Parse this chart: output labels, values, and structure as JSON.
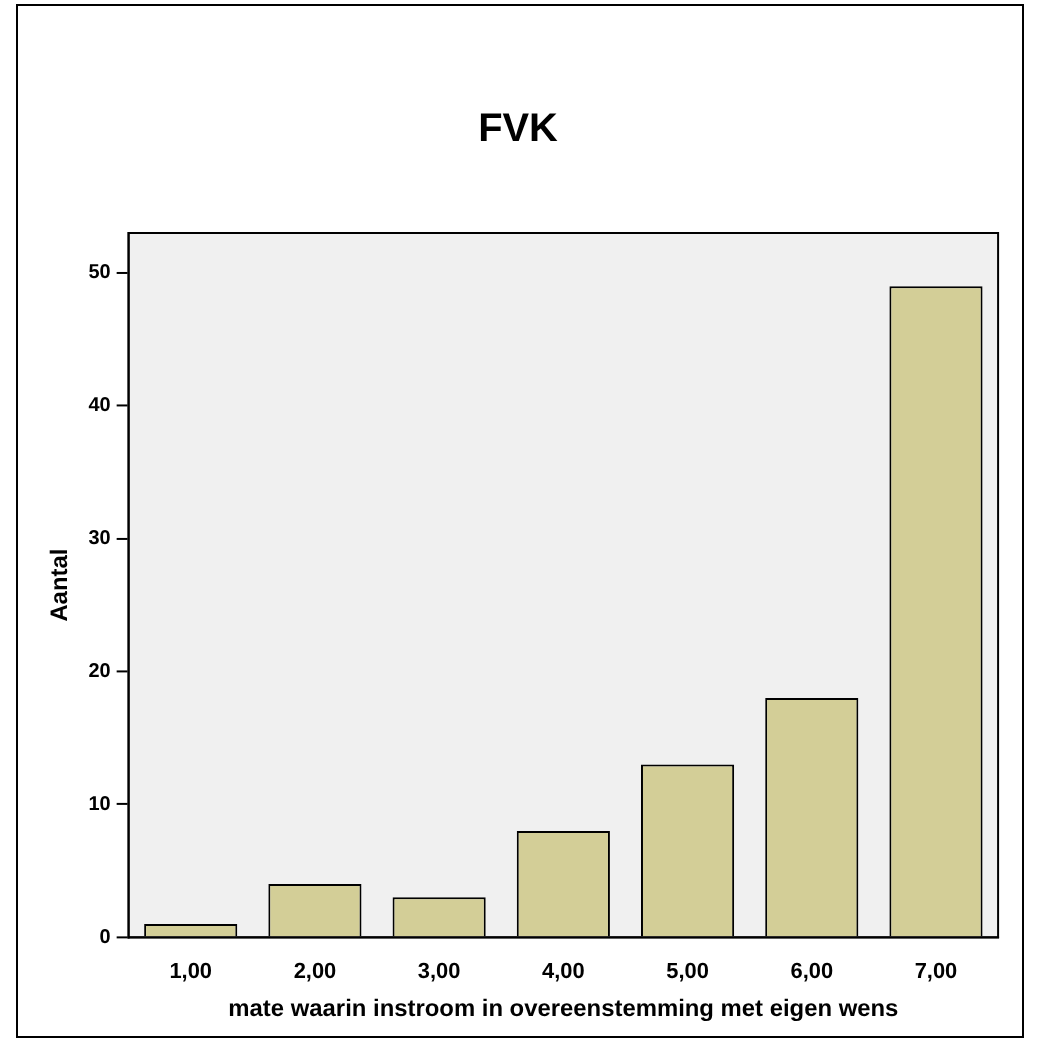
{
  "chart_data": {
    "type": "bar",
    "title": "FVK",
    "xlabel": "mate waarin instroom in overeenstemming met eigen wens",
    "ylabel": "Aantal",
    "categories": [
      "1,00",
      "2,00",
      "3,00",
      "4,00",
      "5,00",
      "6,00",
      "7,00"
    ],
    "values": [
      1,
      4,
      3,
      8,
      13,
      18,
      49
    ],
    "color": "#d3ce97",
    "ylim": [
      0,
      53
    ],
    "yticks": [
      0,
      10,
      20,
      30,
      40,
      50
    ],
    "grid": false,
    "legend": false
  }
}
